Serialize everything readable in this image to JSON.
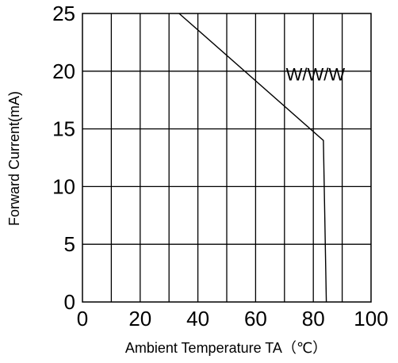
{
  "chart_data": {
    "type": "line",
    "title": "",
    "xlabel": "Ambient Temperature TA（℃）",
    "ylabel": "Forward Current(mA)",
    "xlim": [
      0,
      100
    ],
    "ylim": [
      0,
      25
    ],
    "grid": true,
    "x_ticks": [
      "0",
      "20",
      "40",
      "60",
      "80",
      "100"
    ],
    "y_ticks": [
      "0",
      "5",
      "10",
      "15",
      "20",
      "25"
    ],
    "series": [
      {
        "name": "W/W/W",
        "x": [
          33.5,
          83.5,
          84.5
        ],
        "y": [
          25,
          14,
          0
        ]
      }
    ],
    "annotations": [
      {
        "text": "W/W/W",
        "x": 70.5,
        "y": 19.2
      }
    ],
    "colors": {
      "line": "#000000",
      "grid": "#000000",
      "background": "#ffffff"
    }
  }
}
